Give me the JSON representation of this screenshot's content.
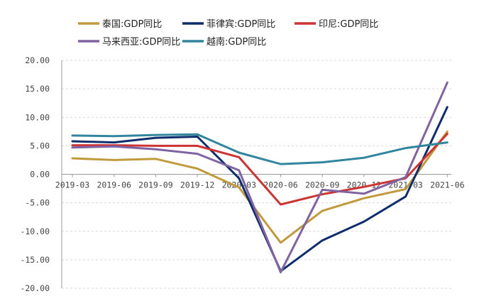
{
  "chart_data": {
    "type": "line",
    "title": "",
    "xlabel": "",
    "ylabel": "",
    "ylim": [
      -20,
      20
    ],
    "yticks": [
      "20.00",
      "15.00",
      "10.00",
      "5.00",
      "0.00",
      "-5.00",
      "-10.00",
      "-15.00",
      "-20.00"
    ],
    "categories": [
      "2019-03",
      "2019-06",
      "2019-09",
      "2019-12",
      "2020-03",
      "2020-06",
      "2020-09",
      "2020-12",
      "2021-03",
      "2021-06"
    ],
    "grid": true,
    "legend_position": "top",
    "series": [
      {
        "name": "泰国:GDP同比",
        "color": "#C29A3E",
        "values": [
          2.8,
          2.5,
          2.7,
          1.0,
          -2.3,
          -12.0,
          -6.4,
          -4.2,
          -2.6,
          7.5
        ]
      },
      {
        "name": "菲律宾:GDP同比",
        "color": "#0F2D6B",
        "values": [
          5.8,
          5.6,
          6.4,
          6.6,
          -0.7,
          -17.0,
          -11.6,
          -8.3,
          -3.9,
          11.8
        ]
      },
      {
        "name": "印尼:GDP同比",
        "color": "#CC3333",
        "values": [
          5.1,
          5.1,
          5.0,
          5.0,
          3.0,
          -5.3,
          -3.5,
          -2.2,
          -0.7,
          7.1
        ]
      },
      {
        "name": "马来西亚:GDP同比",
        "color": "#8064A2",
        "values": [
          4.7,
          4.9,
          4.4,
          3.6,
          0.7,
          -17.2,
          -2.7,
          -3.4,
          -0.5,
          16.1
        ]
      },
      {
        "name": "越南:GDP同比",
        "color": "#31859C",
        "values": [
          6.8,
          6.7,
          6.9,
          7.0,
          3.8,
          1.8,
          2.1,
          2.9,
          4.6,
          5.6
        ]
      }
    ]
  }
}
